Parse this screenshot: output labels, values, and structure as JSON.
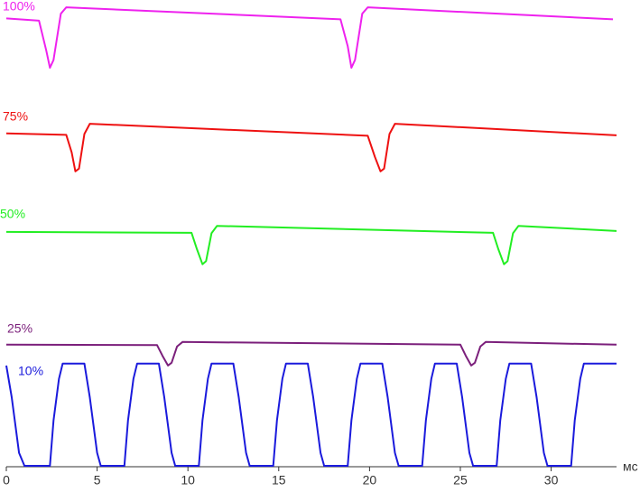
{
  "chart_data": {
    "type": "line",
    "xlim": [
      0,
      33.6
    ],
    "xticks": [
      0,
      5,
      10,
      15,
      20,
      25,
      30
    ],
    "x_label": "мс",
    "ylim": [
      0,
      100
    ],
    "series": [
      {
        "name": "100%",
        "color": "#ee22ee",
        "x": [
          0,
          1.8,
          2.2,
          2.4,
          2.6,
          3.0,
          3.3,
          18.4,
          18.8,
          19.0,
          19.2,
          19.6,
          19.9,
          33.4
        ],
        "values": [
          97,
          96.5,
          90,
          86.3,
          88,
          98,
          99.4,
          96.8,
          91,
          86.3,
          88,
          98,
          99.4,
          96.8
        ]
      },
      {
        "name": "75%",
        "color": "#ee1111",
        "x": [
          0,
          3.3,
          3.6,
          3.8,
          4.0,
          4.3,
          4.6,
          19.9,
          20.3,
          20.6,
          20.8,
          21.1,
          21.4,
          33.6
        ],
        "values": [
          72.1,
          71.8,
          68,
          63.9,
          64.5,
          72,
          74.2,
          71.6,
          67,
          63.9,
          64.5,
          72,
          74.2,
          71.7
        ]
      },
      {
        "name": "50%",
        "color": "#22ee22",
        "x": [
          0,
          10.2,
          10.5,
          10.8,
          11.0,
          11.3,
          11.6,
          26.8,
          27.1,
          27.4,
          27.6,
          27.9,
          28.2,
          33.6
        ],
        "values": [
          50.8,
          50.6,
          47,
          43.8,
          44.5,
          50.5,
          52.1,
          50.6,
          47,
          43.8,
          44.5,
          50.5,
          52.1,
          51
        ]
      },
      {
        "name": "25%",
        "color": "#7b1f7b",
        "x": [
          0,
          8.3,
          8.6,
          8.9,
          9.1,
          9.4,
          9.7,
          25.0,
          25.3,
          25.6,
          25.8,
          26.1,
          26.4,
          33.6
        ],
        "values": [
          26.4,
          26.3,
          24,
          21.9,
          22.5,
          26,
          27,
          26.4,
          24,
          21.9,
          22.5,
          26,
          27,
          26.4
        ]
      },
      {
        "name": "10%",
        "color": "#1a1adc",
        "x": [
          0,
          0.3,
          0.7,
          1.0,
          2.4,
          2.6,
          2.9,
          3.1,
          4.3,
          4.6,
          5.0,
          5.2,
          6.5,
          6.7,
          7.0,
          7.2,
          8.4,
          8.7,
          9.1,
          9.3,
          10.6,
          10.8,
          11.1,
          11.3,
          12.5,
          12.8,
          13.2,
          13.4,
          14.7,
          14.9,
          15.2,
          15.4,
          16.6,
          16.9,
          17.3,
          17.5,
          18.8,
          19.0,
          19.3,
          19.5,
          20.7,
          21.0,
          21.4,
          21.6,
          22.9,
          23.1,
          23.4,
          23.6,
          24.8,
          25.1,
          25.5,
          25.7,
          27.0,
          27.2,
          27.5,
          27.7,
          28.9,
          29.2,
          29.6,
          29.8,
          31.1,
          31.3,
          31.6,
          31.8,
          33.6
        ],
        "values": [
          21.9,
          15,
          3,
          0.2,
          0.2,
          10,
          19,
          22.3,
          22.3,
          15,
          3,
          0.2,
          0.2,
          10,
          19,
          22.3,
          22.3,
          15,
          3,
          0.2,
          0.2,
          10,
          19,
          22.3,
          22.3,
          15,
          3,
          0.2,
          0.2,
          10,
          19,
          22.3,
          22.3,
          15,
          3,
          0.2,
          0.2,
          10,
          19,
          22.3,
          22.3,
          15,
          3,
          0.2,
          0.2,
          10,
          19,
          22.3,
          22.3,
          15,
          3,
          0.2,
          0.2,
          10,
          19,
          22.3,
          22.3,
          15,
          3,
          0.2,
          0.2,
          10,
          19,
          22.3,
          22.3
        ]
      }
    ]
  }
}
